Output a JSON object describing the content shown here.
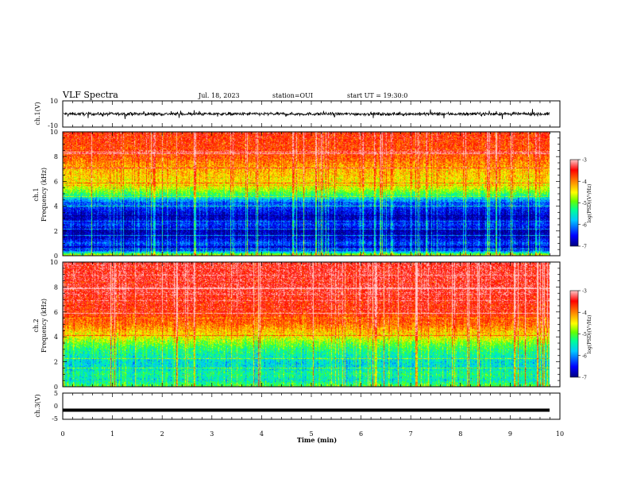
{
  "header": {
    "title": "VLF Spectra",
    "date": "Jul. 18, 2023",
    "station": "station=OUI",
    "start_time": "start UT =  19:30:0"
  },
  "chart_data": [
    {
      "type": "line",
      "name": "ch1-waveform",
      "ylabel": "ch.1(V)",
      "ylim": [
        -10,
        10
      ],
      "ytick_labels": [
        "10",
        "-10"
      ],
      "xlim": [
        0,
        10
      ],
      "baseline_value": 0,
      "noise_amplitude": 2.5
    },
    {
      "type": "heatmap",
      "name": "ch1-spectrogram",
      "ylabel": "ch.1 Frequency (kHz)",
      "ylim": [
        0,
        10
      ],
      "ytick_labels": [
        "0",
        "2",
        "4",
        "6",
        "8",
        "10"
      ],
      "xlim": [
        0,
        9.8
      ],
      "colorbar": {
        "label": "log(PSD)(V²/Hz)",
        "range": [
          -7,
          -3
        ],
        "tick_labels": [
          "-3",
          "-4",
          "-5",
          "-6",
          "-7"
        ]
      },
      "profile": [
        [
          0.0,
          -4.6
        ],
        [
          0.5,
          -6.7
        ],
        [
          1.0,
          -6.2
        ],
        [
          1.5,
          -6.8
        ],
        [
          2.0,
          -6.9
        ],
        [
          2.5,
          -6.3
        ],
        [
          3.0,
          -6.8
        ],
        [
          3.5,
          -6.6
        ],
        [
          4.0,
          -6.3
        ],
        [
          4.5,
          -5.9
        ],
        [
          5.0,
          -5.1
        ],
        [
          5.5,
          -4.6
        ],
        [
          6.0,
          -4.4
        ],
        [
          7.0,
          -4.2
        ],
        [
          8.0,
          -3.8
        ],
        [
          9.0,
          -3.7
        ],
        [
          10.0,
          -3.6
        ]
      ]
    },
    {
      "type": "heatmap",
      "name": "ch2-spectrogram",
      "ylabel": "ch.2 Frequency (kHz)",
      "ylim": [
        0,
        10
      ],
      "ytick_labels": [
        "0",
        "2",
        "4",
        "6",
        "8",
        "10"
      ],
      "xlim": [
        0,
        9.8
      ],
      "colorbar": {
        "label": "log(PSD)(V²/Hz)",
        "range": [
          -7,
          -3
        ],
        "tick_labels": [
          "-3",
          "-4",
          "-5",
          "-6",
          "-7"
        ]
      },
      "profile": [
        [
          0.0,
          -5.0
        ],
        [
          0.5,
          -5.5
        ],
        [
          1.0,
          -5.3
        ],
        [
          1.5,
          -5.6
        ],
        [
          2.0,
          -5.6
        ],
        [
          2.5,
          -5.4
        ],
        [
          3.0,
          -5.2
        ],
        [
          3.5,
          -4.9
        ],
        [
          4.0,
          -4.5
        ],
        [
          4.5,
          -4.2
        ],
        [
          5.0,
          -3.9
        ],
        [
          6.0,
          -3.6
        ],
        [
          7.0,
          -3.5
        ],
        [
          8.0,
          -3.4
        ],
        [
          10.0,
          -3.4
        ]
      ]
    },
    {
      "type": "line",
      "name": "ch3-waveform",
      "ylabel": "ch.3(V)",
      "ylim": [
        -5,
        5
      ],
      "ytick_labels": [
        "5",
        "0",
        "-5"
      ],
      "xlim": [
        0,
        10
      ],
      "baseline_value": -1.5
    }
  ],
  "x_axis": {
    "label": "Time (min)",
    "range": [
      0,
      10
    ],
    "tick_labels": [
      "0",
      "1",
      "2",
      "3",
      "4",
      "5",
      "6",
      "7",
      "8",
      "9",
      "10"
    ]
  },
  "colors": {
    "ink": "#000000",
    "colormap": [
      "#000080",
      "#0000ff",
      "#00c8ff",
      "#00ff96",
      "#64ff00",
      "#ffff00",
      "#ff8c00",
      "#ff0000",
      "#ffc8c8"
    ]
  }
}
